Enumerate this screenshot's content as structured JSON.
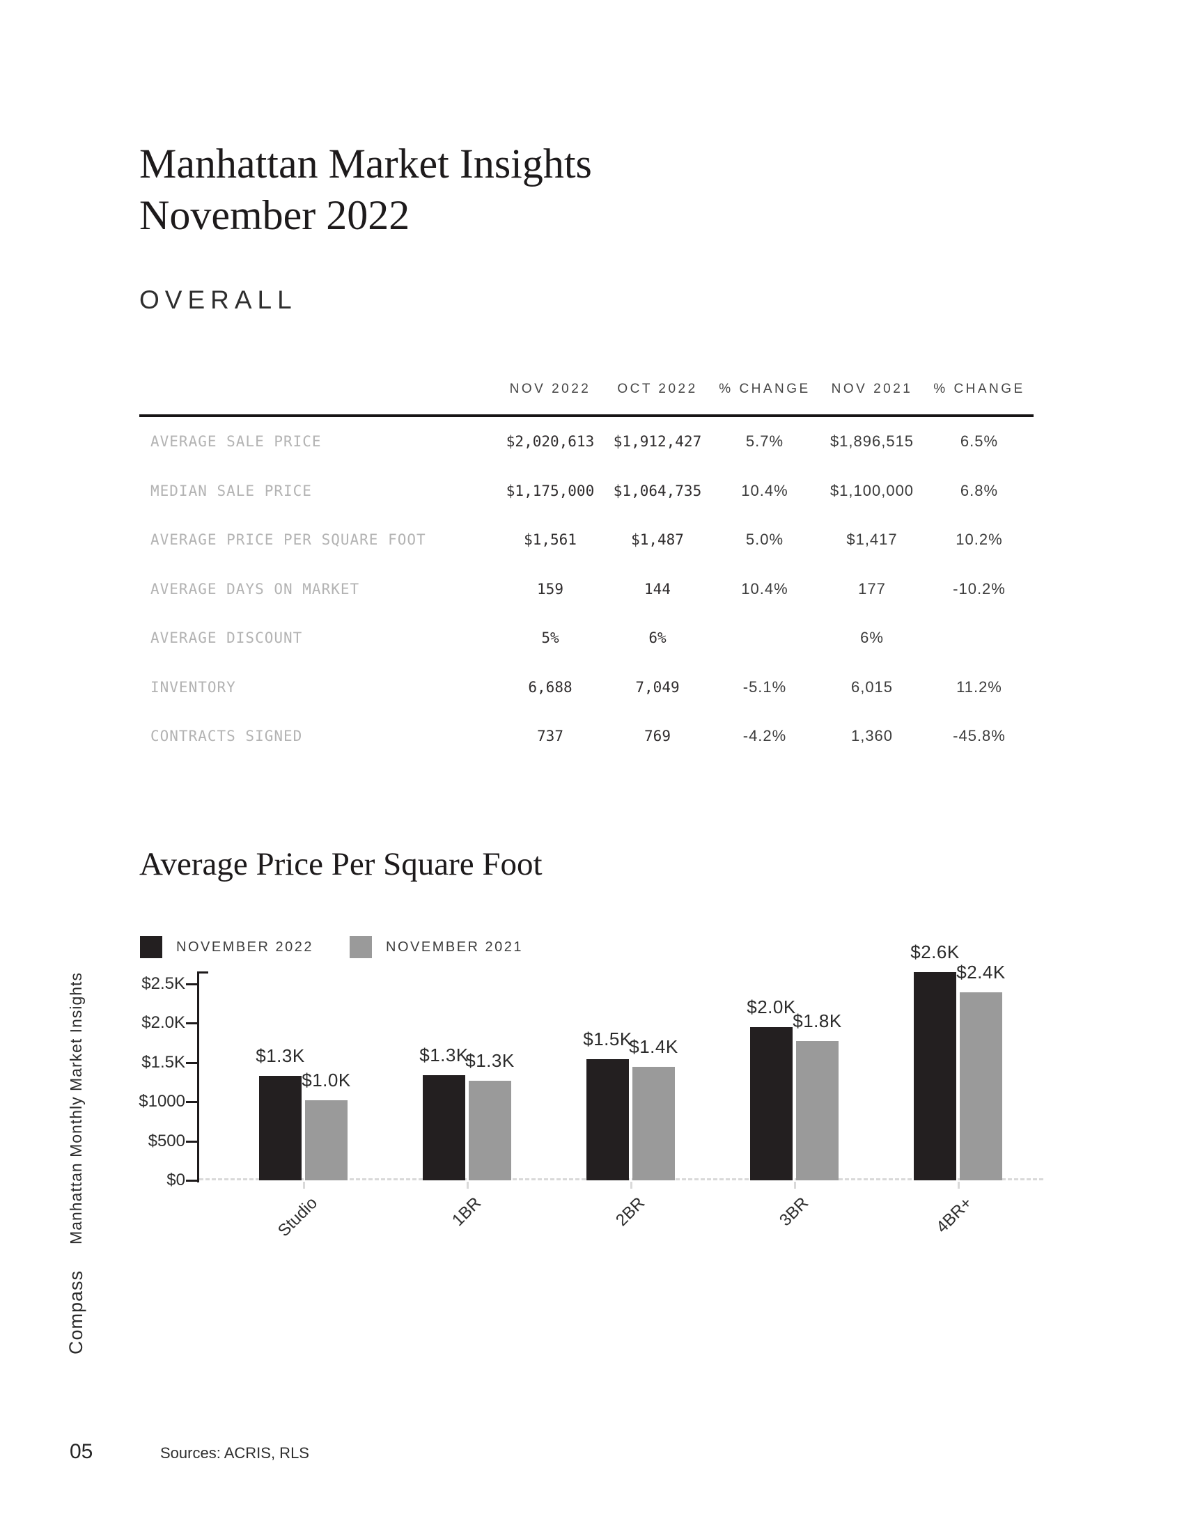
{
  "page": {
    "title_line1": "Manhattan Market Insights",
    "title_line2": "November 2022",
    "section_label": "OVERALL",
    "sidebar_title": "Manhattan Monthly Market Insights",
    "sidebar_brand": "Compass",
    "page_number": "05",
    "sources": "Sources: ACRIS, RLS"
  },
  "table": {
    "column_headers": [
      "NOV 2022",
      "OCT 2022",
      "% CHANGE",
      "NOV 2021",
      "% CHANGE"
    ],
    "rows": [
      {
        "label": "AVERAGE SALE PRICE",
        "values": [
          "$2,020,613",
          "$1,912,427",
          "5.7%",
          "$1,896,515",
          "6.5%"
        ]
      },
      {
        "label": "MEDIAN SALE PRICE",
        "values": [
          "$1,175,000",
          "$1,064,735",
          "10.4%",
          "$1,100,000",
          "6.8%"
        ]
      },
      {
        "label": "AVERAGE PRICE PER SQUARE FOOT",
        "values": [
          "$1,561",
          "$1,487",
          "5.0%",
          "$1,417",
          "10.2%"
        ]
      },
      {
        "label": "AVERAGE DAYS ON MARKET",
        "values": [
          "159",
          "144",
          "10.4%",
          "177",
          "-10.2%"
        ]
      },
      {
        "label": "AVERAGE DISCOUNT",
        "values": [
          "5%",
          "6%",
          "",
          "6%",
          ""
        ]
      },
      {
        "label": "INVENTORY",
        "values": [
          "6,688",
          "7,049",
          "-5.1%",
          "6,015",
          "11.2%"
        ]
      },
      {
        "label": "CONTRACTS SIGNED",
        "values": [
          "737",
          "769",
          "-4.2%",
          "1,360",
          "-45.8%"
        ]
      }
    ]
  },
  "chart_data": {
    "type": "bar",
    "title": "Average Price Per Square Foot",
    "categories": [
      "Studio",
      "1BR",
      "2BR",
      "3BR",
      "4BR+"
    ],
    "series": [
      {
        "name": "NOVEMBER 2022",
        "color": "#231f20",
        "values": [
          1330,
          1340,
          1545,
          1950,
          2650
        ],
        "labels": [
          "$1.3K",
          "$1.3K",
          "$1.5K",
          "$2.0K",
          "$2.6K"
        ]
      },
      {
        "name": "NOVEMBER 2021",
        "color": "#9a9a9a",
        "values": [
          1020,
          1265,
          1445,
          1770,
          2390
        ],
        "labels": [
          "$1.0K",
          "$1.3K",
          "$1.4K",
          "$1.8K",
          "$2.4K"
        ]
      }
    ],
    "xlabel": "",
    "ylabel": "",
    "y_axis": {
      "ticks": [
        "$0",
        "$500",
        "$1000",
        "$1.5K",
        "$2.0K",
        "$2.5K"
      ],
      "tick_interval": 500,
      "min": 0,
      "max": 2500
    },
    "legend_position": "top-left",
    "grid": "off",
    "baseline_style": "dashed"
  },
  "colors": {
    "bar_nov_2022": "#231f20",
    "bar_nov_2021": "#9a9a9a",
    "table_label_gray": "#b3b3b3",
    "rule_black": "#171415",
    "baseline_dash_gray": "#d9d9d9"
  }
}
